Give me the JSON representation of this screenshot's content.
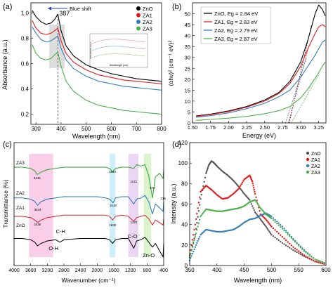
{
  "chart_data": [
    {
      "panel": "(a)",
      "type": "line",
      "xlabel": "Wavelength (nm)",
      "ylabel": "Absorbance (a.u.)",
      "xlim": [
        280,
        800
      ],
      "ylim": [
        0.12,
        1.08
      ],
      "xticks": [
        300,
        400,
        500,
        600,
        700,
        800
      ],
      "yticks": [
        0.2,
        0.4,
        0.6,
        0.8,
        1.0
      ],
      "ytick_labels": [
        "0.2",
        "0.4",
        "0.6",
        "0.8",
        "1.0"
      ],
      "annotations": {
        "peak_label": "387",
        "peak_x": 387,
        "shift_label": "Blue shift"
      },
      "inset": {
        "xlabel": "Wavelength (nm)",
        "ylabel": "Absorbance (a.u.)"
      },
      "legend": "top-right",
      "series": [
        {
          "name": "ZnO",
          "color": "#000000",
          "x": [
            285,
            300,
            320,
            340,
            360,
            375,
            387,
            400,
            420,
            450,
            500,
            550,
            600,
            650,
            700,
            750,
            800
          ],
          "y": [
            1.02,
            0.97,
            0.93,
            0.91,
            0.92,
            0.95,
            0.99,
            0.86,
            0.74,
            0.66,
            0.59,
            0.55,
            0.52,
            0.5,
            0.48,
            0.47,
            0.46
          ]
        },
        {
          "name": "ZA1",
          "color": "#e41a1c",
          "x": [
            285,
            300,
            320,
            340,
            360,
            375,
            387,
            400,
            420,
            450,
            500,
            550,
            600,
            650,
            700,
            750,
            800
          ],
          "y": [
            0.94,
            0.88,
            0.84,
            0.83,
            0.84,
            0.86,
            0.88,
            0.78,
            0.68,
            0.61,
            0.55,
            0.51,
            0.49,
            0.47,
            0.46,
            0.45,
            0.44
          ]
        },
        {
          "name": "ZA2",
          "color": "#377eb8",
          "x": [
            285,
            300,
            320,
            340,
            360,
            375,
            387,
            400,
            420,
            450,
            500,
            550,
            600,
            650,
            700,
            750,
            800
          ],
          "y": [
            0.89,
            0.84,
            0.79,
            0.77,
            0.78,
            0.8,
            0.82,
            0.72,
            0.63,
            0.56,
            0.5,
            0.46,
            0.44,
            0.42,
            0.41,
            0.4,
            0.39
          ]
        },
        {
          "name": "ZA3",
          "color": "#4daf4a",
          "x": [
            285,
            300,
            320,
            340,
            360,
            375,
            387,
            400,
            420,
            450,
            500,
            550,
            600,
            650,
            700,
            750,
            800
          ],
          "y": [
            0.75,
            0.68,
            0.64,
            0.63,
            0.64,
            0.67,
            0.69,
            0.58,
            0.46,
            0.38,
            0.31,
            0.27,
            0.25,
            0.23,
            0.22,
            0.21,
            0.2
          ]
        }
      ]
    },
    {
      "panel": "(b)",
      "type": "line",
      "xlabel": "Energy (eV)",
      "ylabel": "(αhν)² (cm⁻¹ eV)²",
      "xlim": [
        1.5,
        3.35
      ],
      "ylim": [
        0,
        55
      ],
      "xticks": [
        1.5,
        1.75,
        2.0,
        2.25,
        2.5,
        2.75,
        3.0,
        3.25
      ],
      "xtick_labels": [
        "1.50",
        "1.75",
        "2.00",
        "2.25",
        "2.50",
        "2.75",
        "3.00",
        "3.25"
      ],
      "yticks": [
        0,
        5,
        10,
        15,
        20,
        25,
        30,
        35,
        40,
        45,
        50
      ],
      "legend": "top-left",
      "series": [
        {
          "name": "ZnO, Eg = 2.84 eV",
          "color": "#000000",
          "x": [
            1.55,
            1.75,
            2.0,
            2.25,
            2.5,
            2.7,
            2.85,
            3.0,
            3.1,
            3.2,
            3.25,
            3.3,
            3.34
          ],
          "y": [
            3.2,
            4.0,
            5.5,
            7.5,
            10.5,
            14.0,
            19.0,
            28.0,
            38.0,
            50.0,
            54.0,
            52.0,
            49.0
          ]
        },
        {
          "name": "ZA1, Eg = 2.83 eV",
          "color": "#e41a1c",
          "x": [
            1.55,
            1.75,
            2.0,
            2.25,
            2.5,
            2.7,
            2.85,
            3.0,
            3.1,
            3.2,
            3.25,
            3.3,
            3.34
          ],
          "y": [
            3.0,
            3.8,
            5.2,
            7.2,
            10.0,
            13.5,
            18.0,
            26.0,
            34.0,
            41.0,
            44.0,
            45.0,
            44.0
          ]
        },
        {
          "name": "ZA2, Eg = 2.79 eV",
          "color": "#377eb8",
          "x": [
            1.55,
            1.75,
            2.0,
            2.25,
            2.5,
            2.7,
            2.85,
            3.0,
            3.1,
            3.2,
            3.25,
            3.3,
            3.34
          ],
          "y": [
            2.6,
            3.3,
            4.6,
            6.5,
            9.0,
            12.0,
            15.0,
            21.0,
            26.0,
            31.0,
            34.0,
            37.0,
            38.0
          ]
        },
        {
          "name": "ZA3, Eg = 2.87 eV",
          "color": "#4daf4a",
          "x": [
            1.55,
            1.75,
            2.0,
            2.25,
            2.5,
            2.7,
            2.85,
            3.0,
            3.1,
            3.2,
            3.25,
            3.3,
            3.34
          ],
          "y": [
            1.2,
            1.6,
            2.2,
            3.0,
            4.2,
            5.6,
            7.5,
            11.5,
            15.5,
            20.5,
            23.0,
            26.0,
            28.0
          ]
        }
      ]
    },
    {
      "panel": "(c)",
      "type": "line",
      "xlabel": "Wavenumber (cm⁻¹)",
      "ylabel": "Transmittance (%)",
      "xlim": [
        4000,
        400
      ],
      "ylim": [
        0,
        100
      ],
      "xticks": [
        4000,
        3600,
        3200,
        2800,
        2400,
        2000,
        1600,
        1200,
        800,
        400
      ],
      "series_labels": [
        "ZA3",
        "ZA2",
        "ZA1",
        "ZnO"
      ],
      "peak_labels": [
        "3446",
        "3434",
        "3438",
        "1634",
        "1618",
        "1630",
        "1121",
        "1120",
        "670",
        "415"
      ],
      "bond_labels": [
        "C-H",
        "O-H",
        "C-O",
        "Zn-O"
      ],
      "series": [
        {
          "name": "ZA3",
          "color": "#2ca02c",
          "x": [
            4000,
            3800,
            3600,
            3500,
            3446,
            3350,
            3200,
            3000,
            2800,
            2400,
            2000,
            1800,
            1700,
            1634,
            1560,
            1400,
            1250,
            1121,
            1050,
            950,
            850,
            760,
            670,
            600,
            500,
            415,
            400
          ],
          "y": [
            80,
            80,
            79,
            77,
            74,
            76,
            78,
            79,
            80,
            80,
            80,
            80,
            79,
            76,
            79,
            80,
            80,
            79,
            82,
            81,
            82,
            73,
            55,
            72,
            75,
            71,
            78
          ]
        },
        {
          "name": "ZA2",
          "color": "#1f77b4",
          "x": [
            4000,
            3800,
            3600,
            3500,
            3434,
            3350,
            3200,
            3000,
            2800,
            2400,
            2000,
            1800,
            1700,
            1618,
            1560,
            1400,
            1250,
            1120,
            1050,
            950,
            850,
            760,
            670,
            600,
            500,
            415,
            400
          ],
          "y": [
            55,
            55,
            54,
            52,
            49,
            52,
            54,
            55,
            56,
            56,
            56,
            55,
            54,
            51,
            55,
            56,
            56,
            50,
            54,
            55,
            57,
            52,
            42,
            50,
            47,
            44,
            52
          ]
        },
        {
          "name": "ZA1",
          "color": "#d62728",
          "x": [
            4000,
            3800,
            3600,
            3500,
            3438,
            3350,
            3200,
            3000,
            2800,
            2400,
            2000,
            1800,
            1700,
            1630,
            1560,
            1400,
            1250,
            1120,
            1050,
            950,
            850,
            760,
            670,
            600,
            500,
            415,
            400
          ],
          "y": [
            40,
            40,
            39,
            37,
            35,
            37,
            39,
            40,
            41,
            41,
            41,
            41,
            40,
            37,
            40,
            41,
            40,
            36,
            39,
            40,
            41,
            38,
            33,
            37,
            35,
            33,
            38
          ]
        },
        {
          "name": "ZnO",
          "color": "#000000",
          "x": [
            4000,
            3800,
            3600,
            3500,
            3438,
            3350,
            3200,
            3000,
            2900,
            2800,
            2400,
            2000,
            1800,
            1700,
            1630,
            1560,
            1400,
            1250,
            1120,
            1050,
            950,
            850,
            760,
            670,
            600,
            500,
            415,
            400
          ],
          "y": [
            22,
            22,
            21,
            19,
            16,
            18,
            20,
            21,
            19,
            21,
            22,
            22,
            22,
            21,
            18,
            21,
            22,
            22,
            14,
            20,
            21,
            23,
            19,
            15,
            18,
            12,
            7,
            18
          ]
        }
      ]
    },
    {
      "panel": "(d)",
      "type": "scatter",
      "xlabel": "Wavelength (nm)",
      "ylabel": "Intensity (a.u.)",
      "xlim": [
        350,
        600
      ],
      "ylim": [
        0,
        120
      ],
      "xticks": [
        350,
        400,
        450,
        500,
        550,
        600
      ],
      "yticks": [
        0,
        20,
        40,
        60,
        80,
        100,
        120
      ],
      "legend": "top-right",
      "series": [
        {
          "name": "ZnO",
          "color": "#555555",
          "x": [
            350,
            360,
            370,
            380,
            385,
            390,
            395,
            400,
            410,
            420,
            430,
            440,
            450,
            460,
            470,
            480,
            490,
            500,
            520,
            540,
            560,
            580,
            600
          ],
          "y": [
            8,
            30,
            65,
            90,
            98,
            102,
            100,
            97,
            92,
            88,
            83,
            77,
            70,
            64,
            52,
            45,
            38,
            30,
            22,
            15,
            9,
            4,
            1
          ]
        },
        {
          "name": "ZA1",
          "color": "#e41a1c",
          "x": [
            350,
            360,
            370,
            380,
            390,
            400,
            410,
            420,
            430,
            440,
            450,
            460,
            465,
            470,
            480,
            490,
            500,
            520,
            540,
            560,
            580,
            600
          ],
          "y": [
            10,
            40,
            72,
            78,
            74,
            69,
            65,
            66,
            70,
            75,
            84,
            88,
            82,
            70,
            50,
            45,
            38,
            28,
            18,
            10,
            4,
            1
          ]
        },
        {
          "name": "ZA2",
          "color": "#377eb8",
          "x": [
            350,
            360,
            370,
            380,
            390,
            400,
            410,
            420,
            430,
            440,
            450,
            460,
            470,
            480,
            490,
            500,
            520,
            540,
            560,
            580,
            600
          ],
          "y": [
            5,
            18,
            30,
            35,
            34,
            33,
            33,
            34,
            35,
            38,
            42,
            45,
            46,
            49,
            51,
            48,
            38,
            26,
            15,
            6,
            2
          ]
        },
        {
          "name": "ZA3",
          "color": "#4daf4a",
          "x": [
            350,
            360,
            370,
            380,
            390,
            400,
            410,
            420,
            430,
            440,
            450,
            460,
            470,
            480,
            490,
            500,
            520,
            540,
            560,
            580,
            600
          ],
          "y": [
            8,
            28,
            48,
            55,
            54,
            53,
            53,
            54,
            55,
            56,
            58,
            62,
            64,
            56,
            50,
            46,
            36,
            25,
            14,
            6,
            2
          ]
        }
      ]
    }
  ]
}
